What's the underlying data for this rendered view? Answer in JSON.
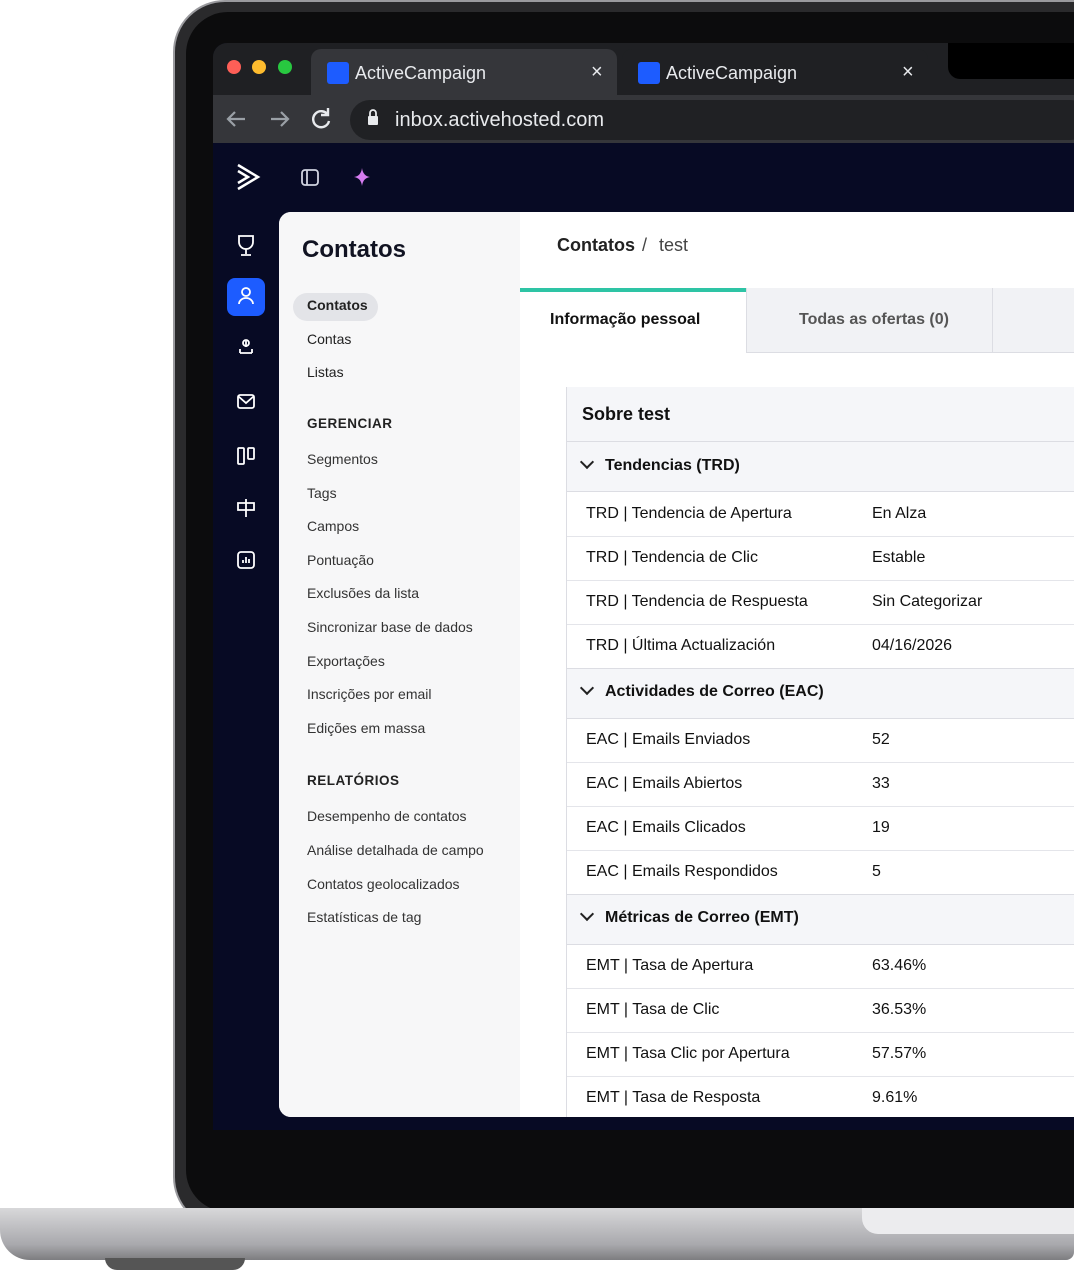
{
  "browser": {
    "tabs": [
      "ActiveCampaign",
      "ActiveCampaign"
    ],
    "url": "inbox.activehosted.com"
  },
  "sidebar": {
    "title": "Contatos",
    "nav": [
      "Contatos",
      "Contas",
      "Listas"
    ],
    "sections": [
      {
        "heading": "GERENCIAR",
        "items": [
          "Segmentos",
          "Tags",
          "Campos",
          "Pontuação",
          "Exclusões da lista",
          "Sincronizar base de dados",
          "Exportações",
          "Inscrições por email",
          "Edições em massa"
        ]
      },
      {
        "heading": "RELATÓRIOS",
        "items": [
          "Desempenho de contatos",
          "Análise detalhada de campo",
          "Contatos geolocalizados",
          "Estatísticas de tag"
        ]
      }
    ]
  },
  "breadcrumb": {
    "parent": "Contatos",
    "separator": "/",
    "current": "test"
  },
  "tabs": [
    "Informação pessoal",
    "Todas as ofertas (0)"
  ],
  "panel": {
    "title": "Sobre test",
    "groups": [
      {
        "name": "Tendencias (TRD)",
        "fields": [
          [
            "TRD | Tendencia de Apertura",
            "En Alza"
          ],
          [
            "TRD | Tendencia de Clic",
            "Estable"
          ],
          [
            "TRD | Tendencia de Respuesta",
            "Sin Categorizar"
          ],
          [
            "TRD | Última Actualización",
            "04/16/2026"
          ]
        ]
      },
      {
        "name": "Actividades de Correo (EAC)",
        "fields": [
          [
            "EAC | Emails Enviados",
            "52"
          ],
          [
            "EAC | Emails Abiertos",
            "33"
          ],
          [
            "EAC | Emails Clicados",
            "19"
          ],
          [
            "EAC | Emails Respondidos",
            "5"
          ]
        ]
      },
      {
        "name": "Métricas de Correo (EMT)",
        "fields": [
          [
            "EMT | Tasa de Apertura",
            "63.46%"
          ],
          [
            "EMT | Tasa de Clic",
            "36.53%"
          ],
          [
            "EMT | Tasa Clic por Apertura",
            "57.57%"
          ],
          [
            "EMT | Tasa de Resposta",
            "9.61%"
          ]
        ]
      }
    ]
  }
}
